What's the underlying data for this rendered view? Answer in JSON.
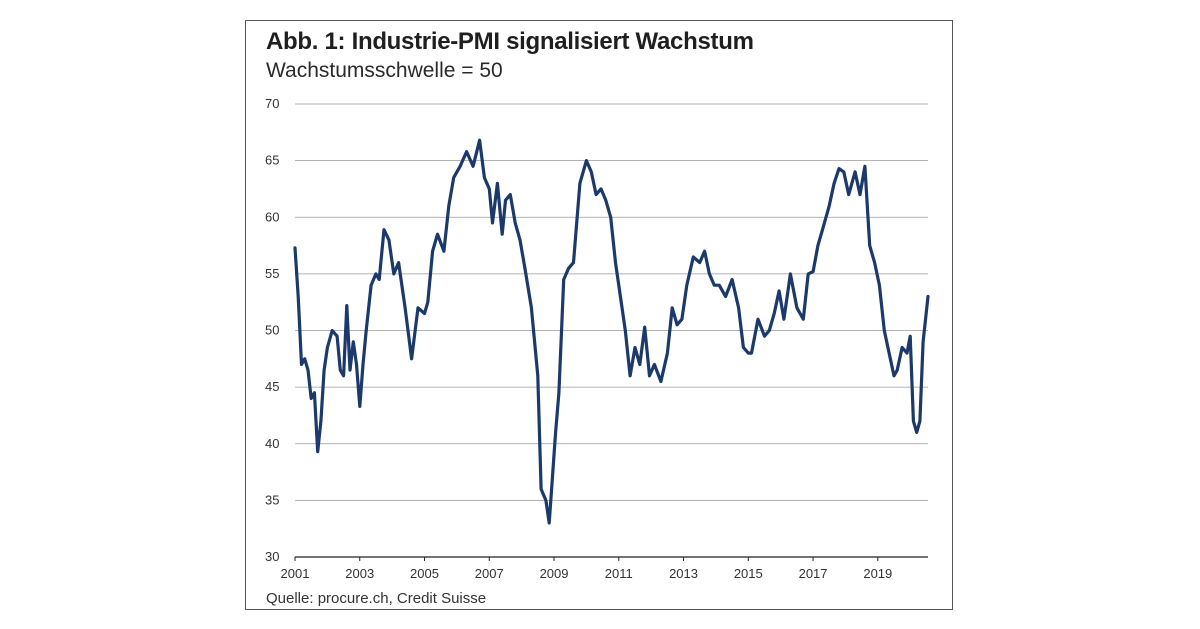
{
  "title": "Abb. 1: Industrie-PMI signalisiert Wachstum",
  "subtitle": "Wachstumsschwelle = 50",
  "source": "Quelle: procure.ch, Credit Suisse",
  "colors": {
    "line": "#1b3a6b",
    "grid": "#9a9a9a",
    "axis": "#222222"
  },
  "chart_data": {
    "type": "line",
    "title": "Abb. 1: Industrie-PMI signalisiert Wachstum",
    "subtitle": "Wachstumsschwelle = 50",
    "xlabel": "",
    "ylabel": "",
    "xlim": [
      2001.0,
      2020.55
    ],
    "ylim": [
      30,
      70
    ],
    "y_ticks": [
      30,
      35,
      40,
      45,
      50,
      55,
      60,
      65,
      70
    ],
    "x_ticks": [
      2001,
      2003,
      2005,
      2007,
      2009,
      2011,
      2013,
      2015,
      2017,
      2019
    ],
    "grid": "horizontal",
    "series": [
      {
        "x": [
          2001.0,
          2001.1,
          2001.2,
          2001.3,
          2001.4,
          2001.5,
          2001.6,
          2001.7,
          2001.8,
          2001.9,
          2002.0,
          2002.15,
          2002.3,
          2002.4,
          2002.5,
          2002.6,
          2002.7,
          2002.8,
          2002.9,
          2003.0,
          2003.1,
          2003.2,
          2003.35,
          2003.5,
          2003.6,
          2003.75,
          2003.9,
          2004.05,
          2004.2,
          2004.4,
          2004.6,
          2004.8,
          2005.0,
          2005.1,
          2005.25,
          2005.4,
          2005.6,
          2005.75,
          2005.9,
          2006.1,
          2006.3,
          2006.5,
          2006.7,
          2006.85,
          2007.0,
          2007.1,
          2007.25,
          2007.4,
          2007.5,
          2007.65,
          2007.8,
          2007.95,
          2008.1,
          2008.3,
          2008.5,
          2008.6,
          2008.75,
          2008.85,
          2008.95,
          2009.05,
          2009.15,
          2009.3,
          2009.45,
          2009.6,
          2009.8,
          2010.0,
          2010.15,
          2010.3,
          2010.45,
          2010.6,
          2010.75,
          2010.9,
          2011.05,
          2011.2,
          2011.35,
          2011.5,
          2011.65,
          2011.8,
          2011.95,
          2012.1,
          2012.3,
          2012.5,
          2012.65,
          2012.8,
          2012.95,
          2013.1,
          2013.3,
          2013.5,
          2013.65,
          2013.8,
          2013.95,
          2014.1,
          2014.3,
          2014.5,
          2014.7,
          2014.85,
          2015.0,
          2015.1,
          2015.3,
          2015.5,
          2015.65,
          2015.8,
          2015.95,
          2016.1,
          2016.3,
          2016.5,
          2016.7,
          2016.85,
          2017.0,
          2017.15,
          2017.3,
          2017.5,
          2017.65,
          2017.8,
          2017.95,
          2018.1,
          2018.3,
          2018.45,
          2018.6,
          2018.75,
          2018.9,
          2019.05,
          2019.2,
          2019.35,
          2019.5,
          2019.6,
          2019.75,
          2019.9,
          2020.0,
          2020.1,
          2020.2,
          2020.3,
          2020.4,
          2020.55
        ],
        "values": [
          57.3,
          53.0,
          47.0,
          47.5,
          46.5,
          44.0,
          44.5,
          39.3,
          42.0,
          46.5,
          48.5,
          50.0,
          49.5,
          46.5,
          46.0,
          52.2,
          46.5,
          49.0,
          47.0,
          43.3,
          47.0,
          50.0,
          54.0,
          55.0,
          54.5,
          58.9,
          58.0,
          55.0,
          56.0,
          52.0,
          47.5,
          52.0,
          51.5,
          52.5,
          57.0,
          58.5,
          57.0,
          61.0,
          63.5,
          64.5,
          65.8,
          64.5,
          66.8,
          63.5,
          62.5,
          59.5,
          63.0,
          58.5,
          61.5,
          62.0,
          59.5,
          58.0,
          55.5,
          52.0,
          46.0,
          36.0,
          35.0,
          33.0,
          37.0,
          41.0,
          44.5,
          54.5,
          55.5,
          56.0,
          63.0,
          65.0,
          64.0,
          62.0,
          62.5,
          61.5,
          60.0,
          56.0,
          53.0,
          50.0,
          46.0,
          48.5,
          47.0,
          50.3,
          46.0,
          47.0,
          45.5,
          48.0,
          52.0,
          50.5,
          51.0,
          54.0,
          56.5,
          56.0,
          57.0,
          55.0,
          54.0,
          54.0,
          53.0,
          54.5,
          52.0,
          48.5,
          48.0,
          48.0,
          51.0,
          49.5,
          50.0,
          51.5,
          53.5,
          51.0,
          55.0,
          52.0,
          51.0,
          55.0,
          55.2,
          57.5,
          59.0,
          61.0,
          63.0,
          64.3,
          64.0,
          62.0,
          64.0,
          62.0,
          64.5,
          57.5,
          56.0,
          54.0,
          50.0,
          48.0,
          46.0,
          46.5,
          48.5,
          48.0,
          49.5,
          42.0,
          41.0,
          42.0,
          49.0,
          53.0
        ]
      }
    ]
  }
}
